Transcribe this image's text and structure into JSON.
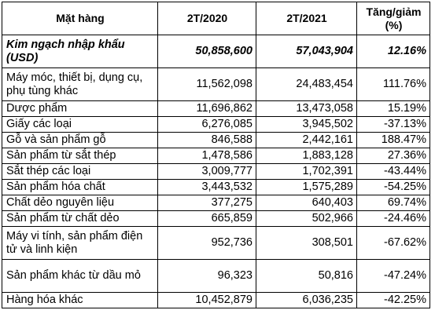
{
  "table": {
    "headers": [
      "Mặt hàng",
      "2T/2020",
      "2T/2021",
      "Tăng/giảm\n(%)"
    ],
    "summary": {
      "name": "Kim ngạch nhập khẩu (USD)",
      "v2020": "50,858,600",
      "v2021": "57,043,904",
      "change": "12.16%"
    },
    "rows": [
      {
        "name": "Máy móc, thiết bị, dụng cụ, phụ tùng khác",
        "v2020": "11,562,098",
        "v2021": "24,483,454",
        "change": "111.76%"
      },
      {
        "name": "Dược phẩm",
        "v2020": "11,696,862",
        "v2021": "13,473,058",
        "change": "15.19%"
      },
      {
        "name": "Giấy các loại",
        "v2020": "6,276,085",
        "v2021": "3,945,502",
        "change": "-37.13%"
      },
      {
        "name": "Gỗ và sản phẩm gỗ",
        "v2020": "846,588",
        "v2021": "2,442,161",
        "change": "188.47%"
      },
      {
        "name": "Sản phẩm từ sắt thép",
        "v2020": "1,478,586",
        "v2021": "1,883,128",
        "change": "27.36%"
      },
      {
        "name": "Sắt thép các loại",
        "v2020": "3,009,777",
        "v2021": "1,702,391",
        "change": "-43.44%"
      },
      {
        "name": "Sản phẩm hóa chất",
        "v2020": "3,443,532",
        "v2021": "1,575,289",
        "change": "-54.25%"
      },
      {
        "name": "Chất dẻo nguyên liệu",
        "v2020": "377,275",
        "v2021": "640,403",
        "change": "69.74%"
      },
      {
        "name": "Sản phẩm từ chất dẻo",
        "v2020": "665,859",
        "v2021": "502,966",
        "change": "-24.46%"
      },
      {
        "name": "Máy vi tính, sản phẩm điện tử và linh kiện",
        "v2020": "952,736",
        "v2021": "308,501",
        "change": "-67.62%"
      },
      {
        "name": "Sản phẩm khác từ dầu mỏ",
        "v2020": "96,323",
        "v2021": "50,816",
        "change": "-47.24%"
      },
      {
        "name": "Hàng hóa khác",
        "v2020": "10,452,879",
        "v2021": "6,036,235",
        "change": "-42.25%"
      }
    ]
  }
}
